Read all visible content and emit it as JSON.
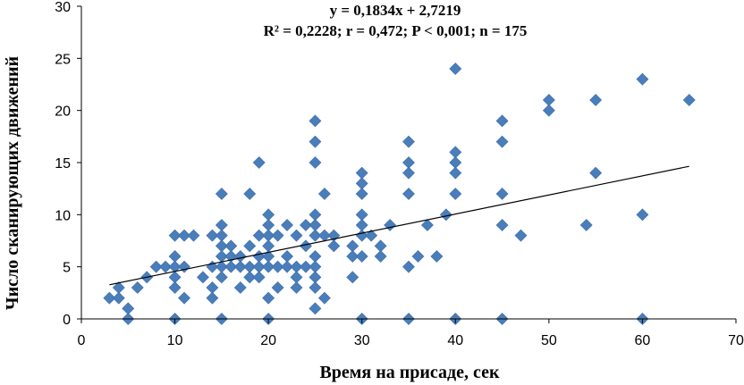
{
  "chart_data": {
    "type": "scatter",
    "xlabel": "Время на присаде, сек",
    "ylabel": "Число сканирующих движений",
    "xlim": [
      0,
      70
    ],
    "ylim": [
      0,
      30
    ],
    "xticks": [
      "0",
      "10",
      "20",
      "30",
      "40",
      "50",
      "60",
      "70"
    ],
    "yticks": [
      "0",
      "5",
      "10",
      "15",
      "20",
      "25",
      "30"
    ],
    "grid": false,
    "legend": "none",
    "annotations": [
      "y = 0,1834x + 2,7219",
      "R² = 0,2228; r = 0,472; P < 0,001; n = 175"
    ],
    "trendline": {
      "type": "linear",
      "slope": 0.1834,
      "intercept": 2.7219,
      "x_range": [
        3,
        65
      ]
    },
    "colors": {
      "points": "#4a7ebb",
      "point_outline": "#3a6aa8",
      "trendline": "#000000",
      "axis": "#000000"
    },
    "points": [
      [
        3,
        2
      ],
      [
        4,
        3
      ],
      [
        4,
        2
      ],
      [
        5,
        1
      ],
      [
        5,
        0
      ],
      [
        6,
        3
      ],
      [
        7,
        4
      ],
      [
        8,
        5
      ],
      [
        9,
        5
      ],
      [
        10,
        8
      ],
      [
        10,
        6
      ],
      [
        10,
        5
      ],
      [
        10,
        4
      ],
      [
        10,
        3
      ],
      [
        10,
        0
      ],
      [
        11,
        8
      ],
      [
        11,
        5
      ],
      [
        11,
        2
      ],
      [
        12,
        8
      ],
      [
        13,
        4
      ],
      [
        14,
        8
      ],
      [
        14,
        5
      ],
      [
        14,
        3
      ],
      [
        14,
        2
      ],
      [
        15,
        12
      ],
      [
        15,
        9
      ],
      [
        15,
        8
      ],
      [
        15,
        7
      ],
      [
        15,
        6
      ],
      [
        15,
        5
      ],
      [
        15,
        4
      ],
      [
        15,
        0
      ],
      [
        16,
        7
      ],
      [
        16,
        5
      ],
      [
        16,
        6
      ],
      [
        17,
        6
      ],
      [
        17,
        5
      ],
      [
        17,
        3
      ],
      [
        18,
        12
      ],
      [
        18,
        7
      ],
      [
        18,
        5
      ],
      [
        18,
        4
      ],
      [
        19,
        15
      ],
      [
        19,
        8
      ],
      [
        19,
        6
      ],
      [
        19,
        5
      ],
      [
        19,
        4
      ],
      [
        20,
        10
      ],
      [
        20,
        9
      ],
      [
        20,
        8
      ],
      [
        20,
        7
      ],
      [
        20,
        6
      ],
      [
        20,
        5
      ],
      [
        20,
        2
      ],
      [
        20,
        0
      ],
      [
        21,
        8
      ],
      [
        21,
        5
      ],
      [
        21,
        3
      ],
      [
        22,
        9
      ],
      [
        22,
        6
      ],
      [
        22,
        5
      ],
      [
        23,
        8
      ],
      [
        23,
        5
      ],
      [
        23,
        4
      ],
      [
        23,
        3
      ],
      [
        24,
        9
      ],
      [
        24,
        7
      ],
      [
        24,
        5
      ],
      [
        25,
        19
      ],
      [
        25,
        17
      ],
      [
        25,
        15
      ],
      [
        25,
        10
      ],
      [
        25,
        9
      ],
      [
        25,
        8
      ],
      [
        25,
        6
      ],
      [
        25,
        5
      ],
      [
        25,
        4
      ],
      [
        25,
        3
      ],
      [
        25,
        1
      ],
      [
        26,
        12
      ],
      [
        26,
        8
      ],
      [
        26,
        2
      ],
      [
        27,
        8
      ],
      [
        27,
        7
      ],
      [
        29,
        7
      ],
      [
        29,
        6
      ],
      [
        29,
        4
      ],
      [
        30,
        14
      ],
      [
        30,
        13
      ],
      [
        30,
        12
      ],
      [
        30,
        10
      ],
      [
        30,
        9
      ],
      [
        30,
        8
      ],
      [
        30,
        6
      ],
      [
        30,
        0
      ],
      [
        31,
        8
      ],
      [
        32,
        7
      ],
      [
        32,
        6
      ],
      [
        33,
        9
      ],
      [
        35,
        17
      ],
      [
        35,
        15
      ],
      [
        35,
        14
      ],
      [
        35,
        12
      ],
      [
        35,
        5
      ],
      [
        35,
        0
      ],
      [
        36,
        6
      ],
      [
        37,
        9
      ],
      [
        38,
        6
      ],
      [
        39,
        10
      ],
      [
        40,
        24
      ],
      [
        40,
        16
      ],
      [
        40,
        15
      ],
      [
        40,
        14
      ],
      [
        40,
        12
      ],
      [
        40,
        0
      ],
      [
        45,
        19
      ],
      [
        45,
        17
      ],
      [
        45,
        12
      ],
      [
        45,
        9
      ],
      [
        45,
        0
      ],
      [
        47,
        8
      ],
      [
        50,
        21
      ],
      [
        50,
        20
      ],
      [
        54,
        9
      ],
      [
        55,
        21
      ],
      [
        55,
        14
      ],
      [
        60,
        23
      ],
      [
        60,
        10
      ],
      [
        60,
        0
      ],
      [
        65,
        21
      ]
    ]
  }
}
